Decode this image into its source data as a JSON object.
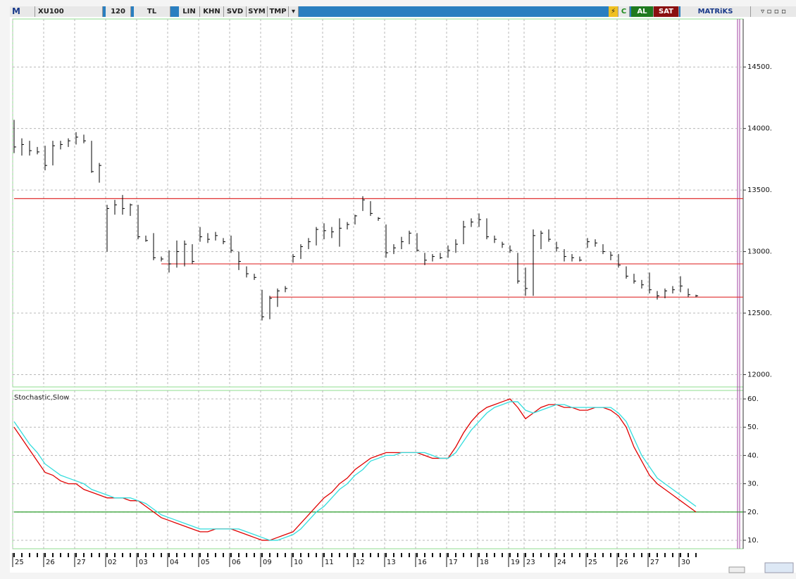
{
  "toolbar": {
    "logo": "M",
    "symbol": "XU100",
    "period": "120",
    "currency": "TL",
    "buttons": [
      "LIN",
      "KHN",
      "SVD",
      "SYM",
      "TMP"
    ],
    "refresh": "C",
    "buy": "AL",
    "sell": "SAT",
    "brand": "MATRiKS"
  },
  "chart_data": [
    {
      "type": "ohlc",
      "color": "#000000",
      "categories": [
        "25",
        null,
        null,
        null,
        "26",
        null,
        null,
        null,
        "27",
        null,
        null,
        null,
        "02",
        null,
        null,
        null,
        "03",
        null,
        null,
        null,
        "04",
        null,
        null,
        null,
        "05",
        null,
        null,
        null,
        "06",
        null,
        null,
        null,
        "09",
        null,
        null,
        null,
        "10",
        null,
        null,
        null,
        "11",
        null,
        null,
        null,
        "12",
        null,
        null,
        null,
        "13",
        null,
        null,
        null,
        "16",
        null,
        null,
        null,
        "17",
        null,
        null,
        null,
        "18",
        null,
        null,
        null,
        "19",
        null,
        "23",
        null,
        null,
        null,
        "24",
        null,
        null,
        null,
        "25",
        null,
        null,
        null,
        "26",
        null,
        null,
        null,
        "27",
        null,
        null,
        null,
        "30",
        null,
        null
      ],
      "high": [
        14070,
        13920,
        13900,
        13850,
        13860,
        13900,
        13900,
        13920,
        13970,
        13950,
        13900,
        13720,
        13380,
        13420,
        13460,
        13390,
        13380,
        13130,
        13150,
        12960,
        13010,
        13090,
        13090,
        13060,
        13200,
        13150,
        13160,
        13110,
        13130,
        13000,
        12880,
        12820,
        12690,
        12640,
        12700,
        12720,
        12980,
        13060,
        13110,
        13200,
        13230,
        13200,
        13270,
        13240,
        13300,
        13450,
        13410,
        13280,
        13220,
        13060,
        13120,
        13170,
        13150,
        12990,
        12980,
        12990,
        13050,
        13100,
        13250,
        13270,
        13310,
        13270,
        13130,
        13080,
        13050,
        12990,
        12870,
        13180,
        13170,
        13180,
        13080,
        13020,
        12980,
        12960,
        13110,
        13100,
        13060,
        13000,
        12980,
        12880,
        12820,
        12770,
        12830,
        12680,
        12700,
        12720,
        12800,
        12700,
        12650
      ],
      "low": [
        13800,
        13780,
        13780,
        13790,
        13660,
        13700,
        13830,
        13850,
        13870,
        13880,
        13640,
        13560,
        13000,
        13300,
        13300,
        13290,
        13100,
        13080,
        12930,
        12920,
        12830,
        12870,
        12880,
        12900,
        13080,
        13070,
        13090,
        13060,
        12990,
        12850,
        12790,
        12770,
        12440,
        12450,
        12550,
        12670,
        12910,
        12940,
        13020,
        13050,
        13100,
        13110,
        13040,
        13180,
        13220,
        13330,
        13290,
        13250,
        12950,
        12980,
        13020,
        13060,
        13000,
        12890,
        12920,
        12940,
        12950,
        12990,
        13060,
        13200,
        13200,
        13100,
        13070,
        13030,
        12990,
        12740,
        12640,
        12640,
        13020,
        13080,
        13000,
        12920,
        12920,
        12920,
        13030,
        13040,
        12980,
        12930,
        12870,
        12780,
        12740,
        12700,
        12660,
        12610,
        12620,
        12660,
        12670,
        12630,
        12630
      ],
      "close": [
        13850,
        13870,
        13820,
        13810,
        13700,
        13860,
        13870,
        13900,
        13930,
        13900,
        13650,
        13700,
        13350,
        13380,
        13350,
        13380,
        13120,
        13090,
        12950,
        12940,
        12900,
        13000,
        13060,
        12920,
        13120,
        13100,
        13130,
        13080,
        13010,
        12920,
        12820,
        12790,
        12470,
        12620,
        12680,
        12700,
        12960,
        13040,
        13080,
        13180,
        13170,
        13160,
        13190,
        13220,
        13290,
        13420,
        13310,
        13270,
        12990,
        13030,
        13080,
        13150,
        13010,
        12930,
        12960,
        12950,
        13010,
        13060,
        13200,
        13240,
        13260,
        13120,
        13100,
        13060,
        13010,
        12760,
        12700,
        13130,
        13150,
        13100,
        13030,
        12960,
        12950,
        12930,
        13080,
        13070,
        13000,
        12970,
        12890,
        12800,
        12760,
        12730,
        12690,
        12640,
        12680,
        12690,
        12720,
        12650,
        12640
      ],
      "ylim": [
        11900,
        14890
      ],
      "yticks": [
        {
          "value": 12000,
          "label": "12000."
        },
        {
          "value": 12500,
          "label": "12500."
        },
        {
          "value": 13000,
          "label": "13000."
        },
        {
          "value": 13500,
          "label": "13500."
        },
        {
          "value": 14000,
          "label": "14000."
        },
        {
          "value": 14500,
          "label": "14500."
        }
      ],
      "grid": true,
      "hlines": [
        {
          "value": 13430,
          "start": 0,
          "color": "#e03030"
        },
        {
          "value": 12900,
          "start": 19,
          "color": "#e03030"
        },
        {
          "value": 12630,
          "start": 33,
          "color": "#e03030"
        }
      ]
    },
    {
      "type": "line",
      "title": "Stochastic,Slow",
      "series": [
        {
          "color": "#e00000",
          "values": [
            50,
            46,
            42,
            38,
            34,
            33,
            31,
            30,
            30,
            28,
            27,
            26,
            25,
            25,
            25,
            24,
            24,
            22,
            20,
            18,
            17,
            16,
            15,
            14,
            13,
            13,
            14,
            14,
            14,
            13,
            12,
            11,
            10,
            10,
            11,
            12,
            13,
            16,
            19,
            22,
            25,
            27,
            30,
            32,
            35,
            37,
            39,
            40,
            41,
            41,
            41,
            41,
            41,
            40,
            39,
            39,
            39,
            43,
            48,
            52,
            55,
            57,
            58,
            59,
            60,
            57,
            53,
            55,
            57,
            58,
            58,
            57,
            57,
            56,
            56,
            57,
            57,
            56,
            54,
            50,
            43,
            38,
            33,
            30,
            28,
            26,
            24,
            22,
            20
          ]
        },
        {
          "color": "#33dddd",
          "values": [
            52,
            48,
            44,
            41,
            37,
            35,
            33,
            32,
            31,
            30,
            28,
            27,
            26,
            25,
            25,
            25,
            24,
            23,
            21,
            19,
            18,
            17,
            16,
            15,
            14,
            14,
            14,
            14,
            14,
            14,
            13,
            12,
            11,
            10,
            10,
            11,
            12,
            14,
            17,
            20,
            22,
            25,
            28,
            30,
            33,
            35,
            38,
            39,
            40,
            40,
            41,
            41,
            41,
            41,
            40,
            39,
            39,
            41,
            45,
            49,
            52,
            55,
            57,
            58,
            59,
            59,
            56,
            55,
            56,
            57,
            58,
            58,
            57,
            57,
            57,
            57,
            57,
            57,
            55,
            52,
            46,
            40,
            36,
            32,
            30,
            28,
            26,
            24,
            22
          ]
        }
      ],
      "ylim": [
        7,
        63
      ],
      "yticks": [
        {
          "value": 10,
          "label": "10."
        },
        {
          "value": 20,
          "label": "20."
        },
        {
          "value": 30,
          "label": "30."
        },
        {
          "value": 40,
          "label": "40."
        },
        {
          "value": 50,
          "label": "50."
        },
        {
          "value": 60,
          "label": "60."
        }
      ],
      "grid": true,
      "hlines": [
        {
          "value": 20,
          "start": 0,
          "color": "#2a9d2a"
        }
      ]
    }
  ]
}
